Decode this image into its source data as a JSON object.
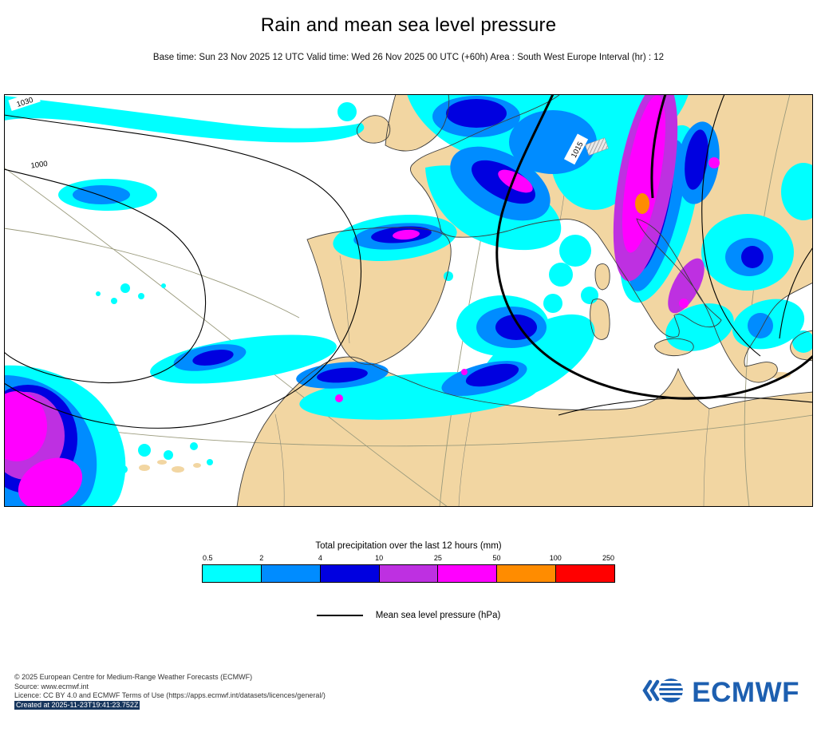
{
  "header": {
    "title": "Rain and mean sea level pressure",
    "subtitle": "Base time: Sun 23 Nov 2025 12 UTC Valid time: Wed 26 Nov 2025 00 UTC (+60h) Area : South West Europe Interval (hr) : 12"
  },
  "map": {
    "area": "South West Europe",
    "sea_color": "#ffffff",
    "land_color": "#f2d6a2",
    "pressure_labels": [
      "1030",
      "1000",
      "1015"
    ]
  },
  "legend": {
    "precip_title": "Total precipitation over the last 12 hours (mm)",
    "ticks": [
      "0.5",
      "2",
      "4",
      "10",
      "25",
      "50",
      "100",
      "250"
    ],
    "colors": [
      "#00ffff",
      "#008cff",
      "#0000e0",
      "#be30e1",
      "#ff00ff",
      "#ff8c00",
      "#ff0000"
    ],
    "mslp_label": "Mean sea level pressure (hPa)"
  },
  "footer": {
    "copyright": "© 2025 European Centre for Medium-Range Weather Forecasts (ECMWF)",
    "source": "Source: www.ecmwf.int",
    "licence": "Licence: CC BY 4.0 and ECMWF Terms of Use (https://apps.ecmwf.int/datasets/licences/general/)",
    "created": "Created at 2025-11-23T19:41:23.752Z",
    "logo_text": "ECMWF",
    "logo_color": "#1d5fb0"
  },
  "chart_data": {
    "type": "heatmap",
    "title": "Rain and mean sea level pressure",
    "area": "South West Europe",
    "base_time": "Sun 23 Nov 2025 12 UTC",
    "valid_time": "Wed 26 Nov 2025 00 UTC (+60h)",
    "interval_hr": 12,
    "legend_title": "Total precipitation over the last 12 hours (mm)",
    "precip_bins_mm": [
      0.5,
      2,
      4,
      10,
      25,
      50,
      100,
      250
    ],
    "bin_colors": [
      "#00ffff",
      "#008cff",
      "#0000e0",
      "#be30e1",
      "#ff00ff",
      "#ff8c00",
      "#ff0000"
    ],
    "pressure_contour_labels_hpa": [
      1030,
      1000,
      1015
    ],
    "overlay": "Mean sea level pressure (hPa)"
  }
}
